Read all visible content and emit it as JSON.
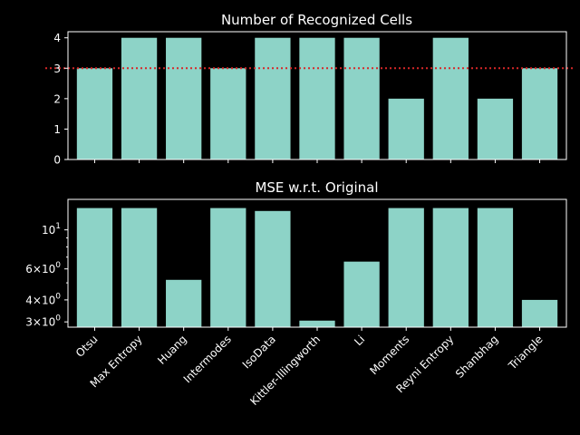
{
  "colors": {
    "background": "#000000",
    "bar": "#8dd3c7",
    "axis": "#ffffff",
    "reference_line": "#d62728"
  },
  "chart_data": [
    {
      "type": "bar",
      "title": "Number of Recognized Cells",
      "xlabel": "",
      "ylabel": "",
      "categories": [
        "Otsu",
        "Max Entropy",
        "Huang",
        "Intermodes",
        "IsoData",
        "Kittler-Illingworth",
        "Li",
        "Moments",
        "Reyni Entropy",
        "Shanbhag",
        "Triangle"
      ],
      "values": [
        3,
        4,
        4,
        3,
        4,
        4,
        4,
        2,
        4,
        2,
        3
      ],
      "ylim": [
        0,
        4.2
      ],
      "yticks": [
        0,
        1,
        2,
        3,
        4
      ],
      "yticklabels": [
        "0",
        "1",
        "2",
        "3",
        "4"
      ],
      "reference_line": {
        "y": 3,
        "style": "dotted"
      },
      "grid": false,
      "show_xticklabels": false
    },
    {
      "type": "bar",
      "title": "MSE w.r.t. Original",
      "xlabel": "",
      "ylabel": "",
      "yscale": "log",
      "categories": [
        "Otsu",
        "Max Entropy",
        "Huang",
        "Intermodes",
        "IsoData",
        "Kittler-Illingworth",
        "Li",
        "Moments",
        "Reyni Entropy",
        "Shanbhag",
        "Triangle"
      ],
      "values": [
        13.3,
        13.3,
        5.2,
        13.3,
        12.8,
        3.05,
        6.6,
        13.3,
        13.3,
        13.3,
        4.0
      ],
      "ylim": [
        2.8,
        14.9
      ],
      "yticks": [
        3,
        4,
        6,
        10
      ],
      "yticklabels": [
        {
          "base": "3",
          "exp": "0"
        },
        {
          "base": "4",
          "exp": "0"
        },
        {
          "base": "6",
          "exp": "0"
        },
        {
          "base": "10",
          "exp": "1"
        }
      ],
      "minor_yticks": [
        5,
        7,
        8,
        9
      ],
      "grid": false,
      "show_xticklabels": true
    }
  ]
}
